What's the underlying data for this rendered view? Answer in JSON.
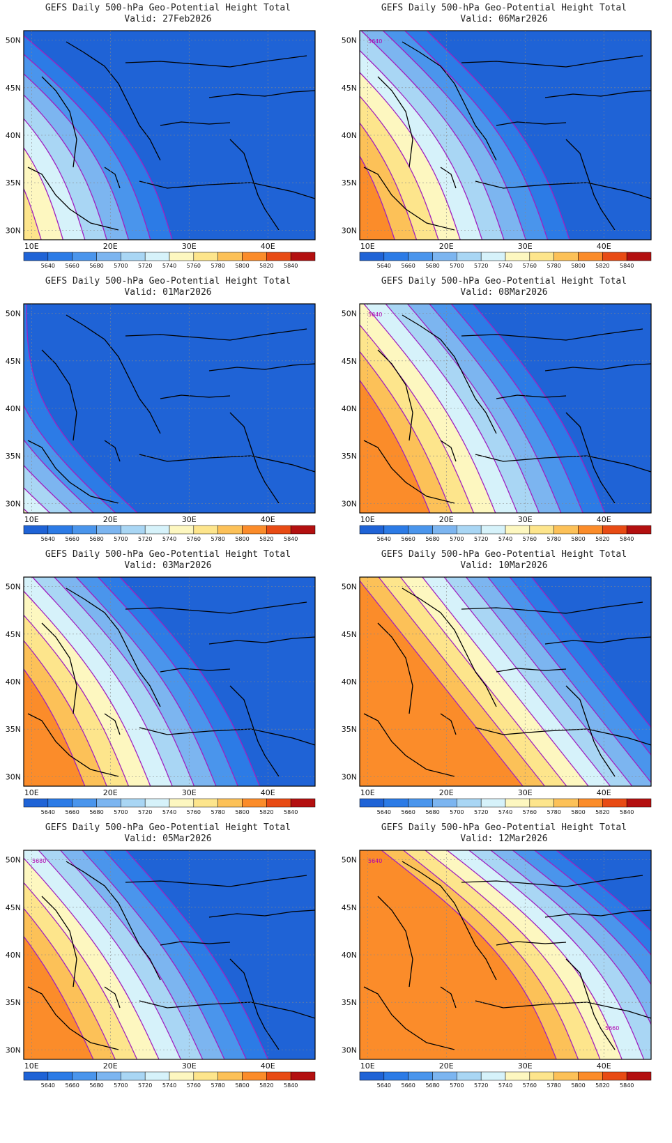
{
  "legend": {
    "levels": [
      5640,
      5660,
      5680,
      5700,
      5720,
      5740,
      5760,
      5780,
      5800,
      5820,
      5840
    ],
    "colors": [
      "#1f63d6",
      "#2c7be6",
      "#4a95ec",
      "#7cb5f0",
      "#a9d6f4",
      "#d6f2fa",
      "#fdf7c0",
      "#fde58c",
      "#fcc158",
      "#fb8c2a",
      "#e84b14",
      "#b31010"
    ]
  },
  "x_ticks": [
    "10E",
    "20E",
    "30E",
    "40E"
  ],
  "y_ticks": [
    "50N",
    "45N",
    "40N",
    "35N",
    "30N"
  ],
  "map_extent": {
    "lon": [
      9,
      46
    ],
    "lat": [
      29,
      51
    ]
  },
  "contour_color": "#a020c0",
  "land_outline_color": "#000000",
  "panels": [
    {
      "title": "GEFS Daily 500-hPa Geo-Potential Height Total",
      "valid": "Valid: 27Feb2026",
      "labels": []
    },
    {
      "title": "GEFS Daily 500-hPa Geo-Potential Height Total",
      "valid": "Valid: 06Mar2026",
      "labels": [
        "5640"
      ]
    },
    {
      "title": "GEFS Daily 500-hPa Geo-Potential Height Total",
      "valid": "Valid: 01Mar2026",
      "labels": []
    },
    {
      "title": "GEFS Daily 500-hPa Geo-Potential Height Total",
      "valid": "Valid: 08Mar2026",
      "labels": [
        "5640"
      ]
    },
    {
      "title": "GEFS Daily 500-hPa Geo-Potential Height Total",
      "valid": "Valid: 03Mar2026",
      "labels": []
    },
    {
      "title": "GEFS Daily 500-hPa Geo-Potential Height Total",
      "valid": "Valid: 10Mar2026",
      "labels": []
    },
    {
      "title": "GEFS Daily 500-hPa Geo-Potential Height Total",
      "valid": "Valid: 05Mar2026",
      "labels": [
        "5680"
      ]
    },
    {
      "title": "GEFS Daily 500-hPa Geo-Potential Height Total",
      "valid": "Valid: 12Mar2026",
      "labels": [
        "5640",
        "5660"
      ]
    }
  ]
}
